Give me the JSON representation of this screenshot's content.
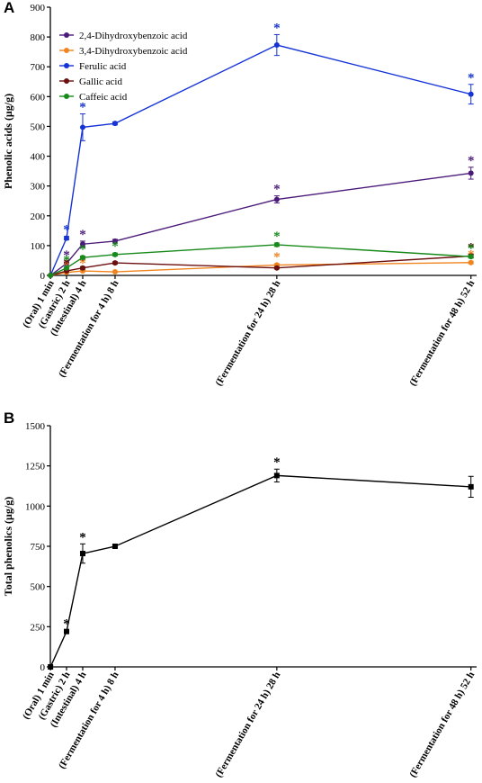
{
  "colors": {
    "dihydroxybenzoic_24": "#4b1a7a",
    "dihydroxybenzoic_34": "#f0841e",
    "ferulic": "#1533d6",
    "gallic": "#6b0f0f",
    "caffeic": "#178a1a",
    "total": "#000000"
  },
  "chart_data": [
    {
      "panel_label": "A",
      "type": "line",
      "ylabel": "Phenolic acids (μg/g)",
      "ylim": [
        0,
        900
      ],
      "yticks": [
        0,
        100,
        200,
        300,
        400,
        500,
        600,
        700,
        800,
        900
      ],
      "x_hours": [
        0.0167,
        2,
        4,
        8,
        28,
        52
      ],
      "categories": [
        "(Oral) 1 min",
        "(Gastric) 2 h",
        "(Intestinal) 4 h",
        "(Fermentation for 4 h) 8 h",
        "(Fermentation for 24 h) 28 h",
        "(Fermentation for 48 h) 52 h"
      ],
      "legend": "top-left",
      "series": [
        {
          "name": "2,4-Dihydroxybenzoic acid",
          "color_key": "dihydroxybenzoic_24",
          "values": [
            0,
            40,
            105,
            115,
            255,
            343
          ],
          "errors": [
            0,
            5,
            10,
            6,
            12,
            20
          ],
          "significant": [
            false,
            true,
            true,
            false,
            true,
            true
          ]
        },
        {
          "name": "3,4-Dihydroxybenzoic acid",
          "color_key": "dihydroxybenzoic_34",
          "values": [
            0,
            10,
            15,
            12,
            35,
            43
          ],
          "errors": [
            0,
            2,
            3,
            2,
            4,
            4
          ],
          "significant": [
            false,
            true,
            true,
            false,
            true,
            true
          ]
        },
        {
          "name": "Ferulic acid",
          "color_key": "ferulic",
          "values": [
            0,
            125,
            497,
            510,
            773,
            608
          ],
          "errors": [
            0,
            6,
            45,
            5,
            35,
            33
          ],
          "significant": [
            false,
            true,
            true,
            false,
            true,
            true
          ]
        },
        {
          "name": "Gallic acid",
          "color_key": "gallic",
          "values": [
            0,
            15,
            25,
            42,
            25,
            65
          ],
          "errors": [
            0,
            3,
            4,
            4,
            3,
            6
          ],
          "significant": [
            false,
            true,
            true,
            false,
            false,
            true
          ]
        },
        {
          "name": "Caffeic acid",
          "color_key": "caffeic",
          "values": [
            0,
            25,
            60,
            70,
            103,
            63
          ],
          "errors": [
            0,
            3,
            5,
            5,
            6,
            5
          ],
          "significant": [
            false,
            true,
            true,
            true,
            true,
            true
          ]
        }
      ]
    },
    {
      "panel_label": "B",
      "type": "line",
      "ylabel": "Total phenolics (μg/g)",
      "ylim": [
        0,
        1500
      ],
      "yticks": [
        0,
        250,
        500,
        750,
        1000,
        1250,
        1500
      ],
      "x_hours": [
        0.0167,
        2,
        4,
        8,
        28,
        52
      ],
      "categories": [
        "(Oral) 1 min",
        "(Gastric) 2 h",
        "(Intestinal) 4 h",
        "(Fermentation for 4 h) 8 h",
        "(Fermentation for 24 h) 28 h",
        "(Fermentation for 48 h) 52 h"
      ],
      "series": [
        {
          "name": "Total phenolics",
          "color_key": "total",
          "values": [
            0,
            220,
            705,
            750,
            1190,
            1120
          ],
          "errors": [
            0,
            8,
            60,
            8,
            40,
            65
          ],
          "significant": [
            false,
            true,
            true,
            false,
            true,
            false
          ]
        }
      ]
    }
  ]
}
